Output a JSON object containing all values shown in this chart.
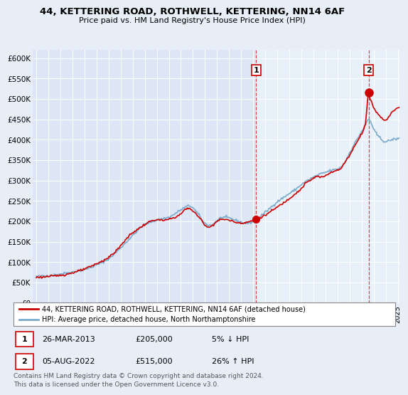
{
  "title": "44, KETTERING ROAD, ROTHWELL, KETTERING, NN14 6AF",
  "subtitle": "Price paid vs. HM Land Registry's House Price Index (HPI)",
  "ylim": [
    0,
    620000
  ],
  "yticks": [
    0,
    50000,
    100000,
    150000,
    200000,
    250000,
    300000,
    350000,
    400000,
    450000,
    500000,
    550000,
    600000
  ],
  "ytick_labels": [
    "£0",
    "£50K",
    "£100K",
    "£150K",
    "£200K",
    "£250K",
    "£300K",
    "£350K",
    "£400K",
    "£450K",
    "£500K",
    "£550K",
    "£600K"
  ],
  "background_color": "#e8eef8",
  "plot_bg_color": "#dce6f5",
  "highlight_bg_color": "#dce9f5",
  "red_color": "#cc0000",
  "blue_color": "#7aaacc",
  "legend_label_red": "44, KETTERING ROAD, ROTHWELL, KETTERING, NN14 6AF (detached house)",
  "legend_label_blue": "HPI: Average price, detached house, North Northamptonshire",
  "transaction1_date": "26-MAR-2013",
  "transaction1_price": "£205,000",
  "transaction1_hpi": "5% ↓ HPI",
  "transaction2_date": "05-AUG-2022",
  "transaction2_price": "£515,000",
  "transaction2_hpi": "26% ↑ HPI",
  "footer1": "Contains HM Land Registry data © Crown copyright and database right 2024.",
  "footer2": "This data is licensed under the Open Government Licence v3.0.",
  "transaction1_x": 2013.25,
  "transaction1_y": 205000,
  "transaction2_x": 2022.58,
  "transaction2_y": 515000,
  "vline1_x": 2013.25,
  "vline2_x": 2022.58,
  "xmin": 1995.0,
  "xmax": 2025.2
}
